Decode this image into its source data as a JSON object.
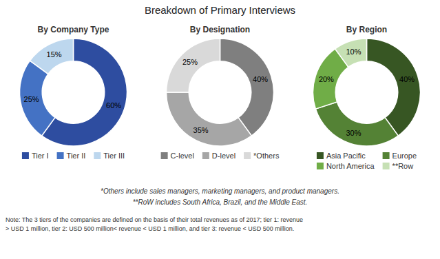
{
  "title": "Breakdown of Primary Interviews",
  "annotations": [
    "*Others include sales managers, marketing managers, and product managers.",
    "**RoW includes South Africa, Brazil, and the Middle East.",
    "Note: The 3 tiers of the companies are defined on the basis of their total revenues as of 2017; tier 1: revenue\n> USD 1 million, tier 2: USD 500 million< revenue < USD 1 million, and tier 3: revenue < USD 500 million."
  ],
  "chart_data": [
    {
      "type": "pie",
      "title": "By Company Type",
      "categories": [
        "Tier I",
        "Tier II",
        "Tier III"
      ],
      "values": [
        60,
        25,
        15
      ],
      "value_labels": [
        "60%",
        "25%",
        "15%"
      ],
      "colors": [
        "#2e4da0",
        "#4472c4",
        "#bdd7ee"
      ],
      "data_labels": true,
      "legend": "bottom"
    },
    {
      "type": "pie",
      "title": "By Designation",
      "categories": [
        "C-level",
        "D-level",
        "*Others"
      ],
      "values": [
        40,
        35,
        25
      ],
      "value_labels": [
        "40%",
        "35%",
        "25%"
      ],
      "colors": [
        "#7f7f7f",
        "#a6a6a6",
        "#d9d9d9"
      ],
      "data_labels": true,
      "legend": "bottom"
    },
    {
      "type": "pie",
      "title": "By Region",
      "categories": [
        "Asia Pacific",
        "Europe",
        "North America",
        "**Row"
      ],
      "values": [
        40,
        30,
        20,
        10
      ],
      "value_labels": [
        "40%",
        "30%",
        "20%",
        "10%"
      ],
      "colors": [
        "#375623",
        "#548235",
        "#70ad47",
        "#c6e0b4"
      ],
      "data_labels": true,
      "legend": "bottom"
    }
  ]
}
